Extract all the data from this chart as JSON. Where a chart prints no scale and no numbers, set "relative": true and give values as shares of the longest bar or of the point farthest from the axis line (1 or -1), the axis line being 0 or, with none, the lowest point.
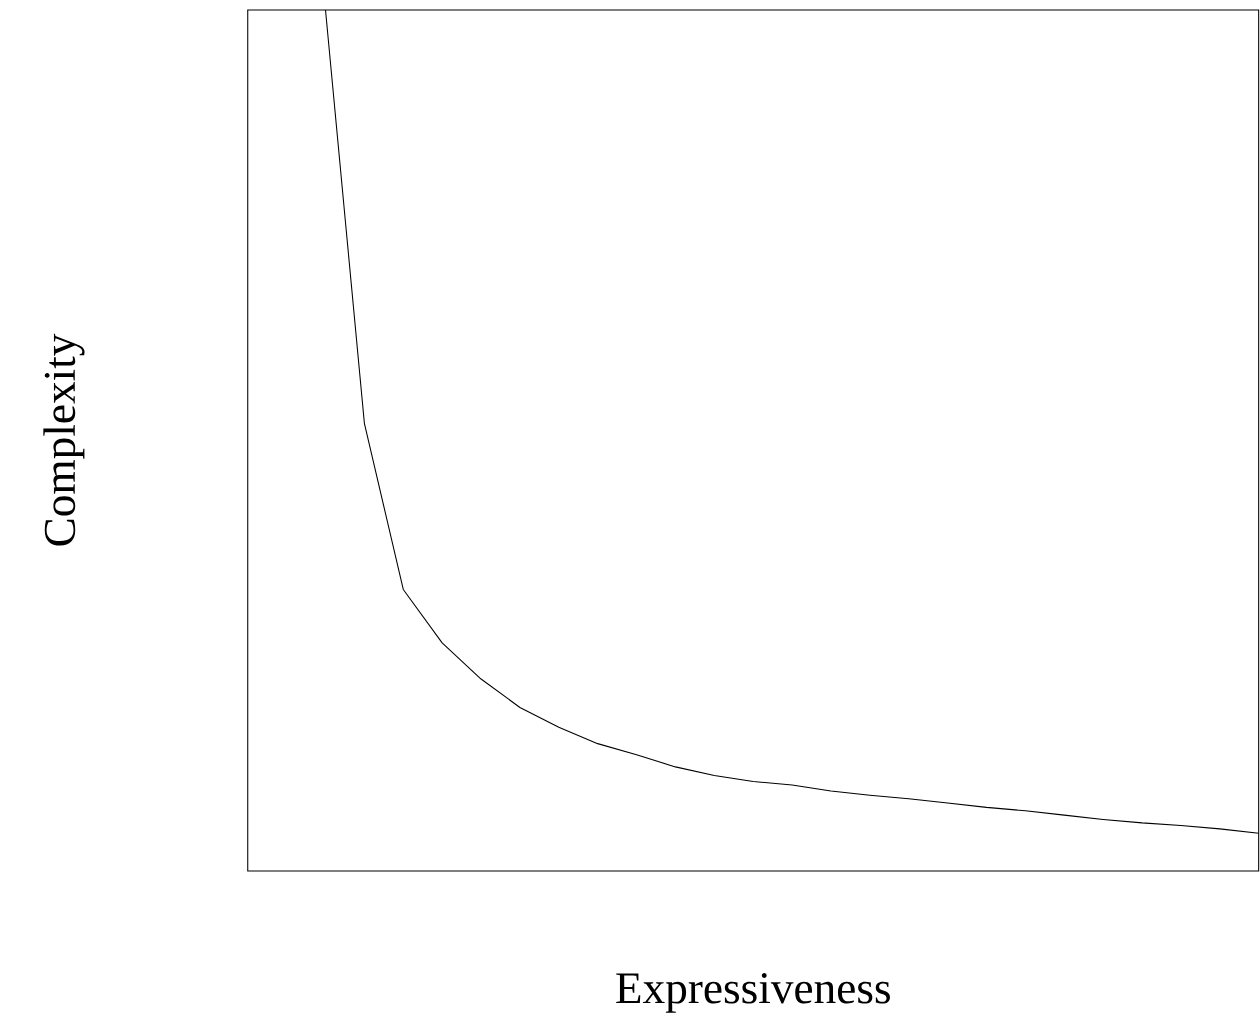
{
  "chart_data": {
    "type": "line",
    "xlabel": "Expressiveness",
    "ylabel": "Complexity",
    "relative": true,
    "categories": [
      null,
      null,
      null,
      null,
      null,
      null,
      null,
      null,
      null,
      null,
      null,
      null,
      null,
      null,
      null,
      null,
      null,
      null,
      null,
      null,
      null,
      null,
      null,
      null,
      null
    ],
    "series": [
      {
        "color": "#000000",
        "values": [
          1.0,
          0.52,
          0.327,
          0.265,
          0.223,
          0.19,
          0.167,
          0.148,
          0.135,
          0.121,
          0.111,
          0.104,
          0.1,
          0.093,
          0.088,
          0.084,
          0.079,
          0.074,
          0.07,
          0.065,
          0.06,
          0.056,
          0.053,
          0.049,
          0.044
        ]
      }
    ]
  }
}
